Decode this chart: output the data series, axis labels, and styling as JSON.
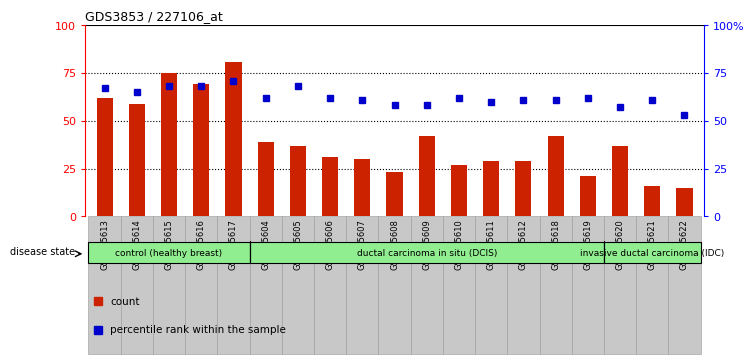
{
  "title": "GDS3853 / 227106_at",
  "samples": [
    "GSM535613",
    "GSM535614",
    "GSM535615",
    "GSM535616",
    "GSM535617",
    "GSM535604",
    "GSM535605",
    "GSM535606",
    "GSM535607",
    "GSM535608",
    "GSM535609",
    "GSM535610",
    "GSM535611",
    "GSM535612",
    "GSM535618",
    "GSM535619",
    "GSM535620",
    "GSM535621",
    "GSM535622"
  ],
  "counts": [
    62,
    59,
    75,
    69,
    81,
    39,
    37,
    31,
    30,
    23,
    42,
    27,
    29,
    29,
    42,
    21,
    37,
    16,
    15
  ],
  "percentiles": [
    67,
    65,
    68,
    68,
    71,
    62,
    68,
    62,
    61,
    58,
    58,
    62,
    60,
    61,
    61,
    62,
    57,
    61,
    53
  ],
  "group_boundaries": [
    0,
    5,
    16,
    19
  ],
  "group_labels": [
    "control (healthy breast)",
    "ductal carcinoma in situ (DCIS)",
    "invasive ductal carcinoma (IDC)"
  ],
  "group_colors": [
    "#90EE90",
    "#90EE90",
    "#90EE90"
  ],
  "bar_color": "#CC2200",
  "dot_color": "#0000CC",
  "ylim_left": [
    0,
    100
  ],
  "ylim_right": [
    0,
    100
  ],
  "yticks_left": [
    0,
    25,
    50,
    75,
    100
  ],
  "yticks_right": [
    0,
    25,
    50,
    75,
    100
  ],
  "grid_lines": [
    25,
    50,
    75
  ],
  "disease_state_label": "disease state",
  "legend_count_label": "count",
  "legend_pct_label": "percentile rank within the sample"
}
